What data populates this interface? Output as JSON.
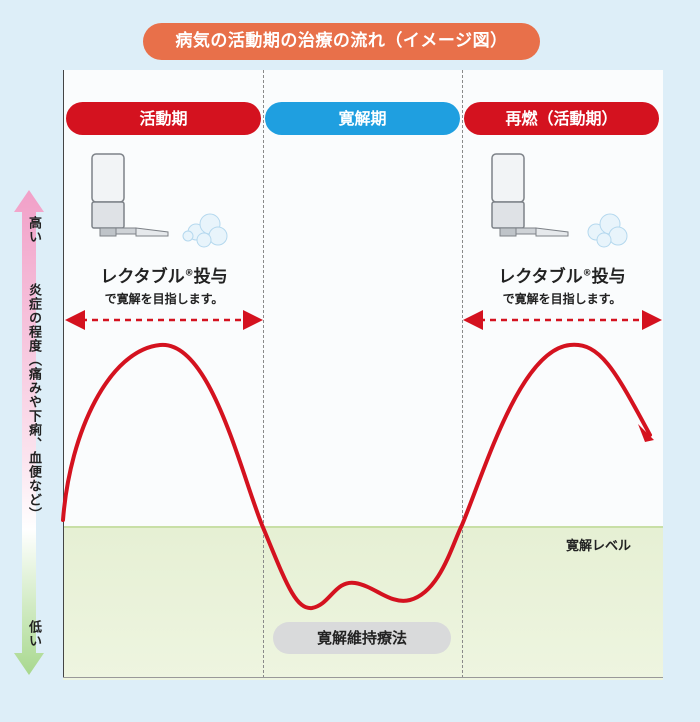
{
  "title": "病気の活動期の治療の流れ（イメージ図）",
  "phases": [
    {
      "label": "活動期",
      "color": "#d4121f"
    },
    {
      "label": "寛解期",
      "color": "#1f9fe0"
    },
    {
      "label": "再燃（活動期）",
      "color": "#d4121f"
    }
  ],
  "drug_left": {
    "name": "レクタブル",
    "reg": "®",
    "suffix": "投与",
    "sub": "で寛解を目指します。"
  },
  "drug_right": {
    "name": "レクタブル",
    "reg": "®",
    "suffix": "投与",
    "sub": "で寛解を目指します。"
  },
  "remission_level": "寛解レベル",
  "maintenance": "寛解維持療法",
  "y_axis": {
    "high": "高い",
    "label": "炎症の程度（痛みや下痢、血便など）",
    "low": "低い"
  },
  "colors": {
    "curve": "#d4121f",
    "title": "#e8704a",
    "remission_phase": "#1f9fe0"
  }
}
